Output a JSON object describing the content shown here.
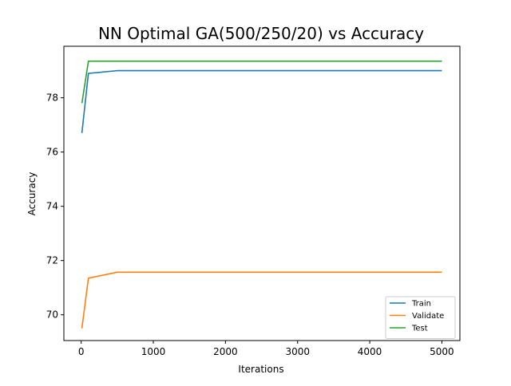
{
  "chart_data": {
    "type": "line",
    "title": "NN Optimal GA(500/250/20) vs Accuracy",
    "xlabel": "Iterations",
    "ylabel": "Accuracy",
    "x": [
      10,
      100,
      500,
      1000,
      2000,
      3000,
      4000,
      5000
    ],
    "xlim": [
      -240,
      5250
    ],
    "ylim": [
      69.05,
      79.9
    ],
    "xticks": [
      0,
      1000,
      2000,
      3000,
      4000,
      5000
    ],
    "yticks": [
      70,
      72,
      74,
      76,
      78
    ],
    "grid": false,
    "legend_position": "lower-right",
    "series": [
      {
        "name": "Train",
        "color": "#1f77b4",
        "values": [
          76.7,
          78.9,
          79.0,
          79.0,
          79.0,
          79.0,
          79.0,
          79.0
        ]
      },
      {
        "name": "Validate",
        "color": "#ff7f0e",
        "values": [
          69.5,
          71.35,
          71.57,
          71.57,
          71.57,
          71.57,
          71.57,
          71.57
        ]
      },
      {
        "name": "Test",
        "color": "#2ca02c",
        "values": [
          77.8,
          79.35,
          79.35,
          79.35,
          79.35,
          79.35,
          79.35,
          79.35
        ]
      }
    ]
  }
}
